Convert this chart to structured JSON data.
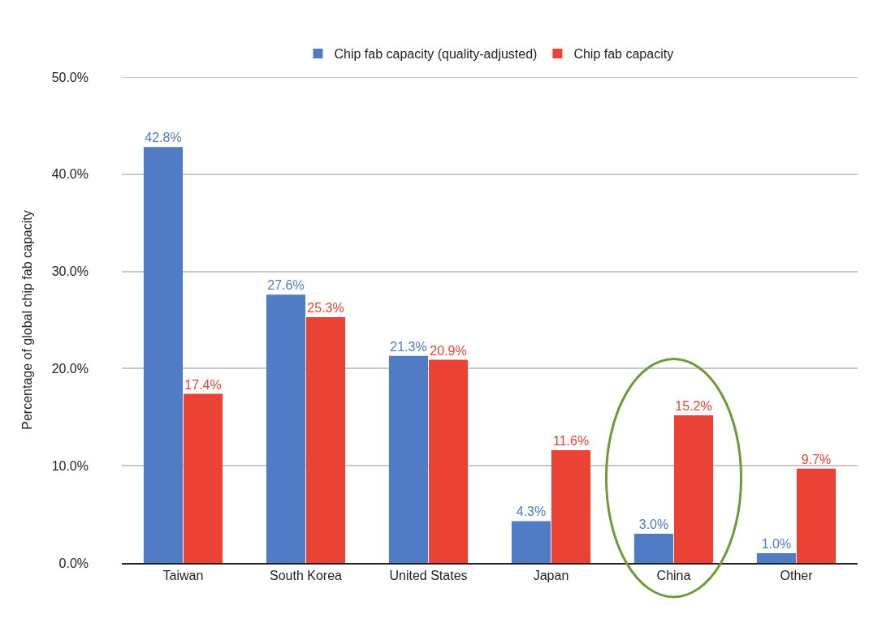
{
  "chart_data": {
    "type": "bar",
    "ylabel": "Percentage of global chip fab capacity",
    "categories": [
      "Taiwan",
      "South Korea",
      "United States",
      "Japan",
      "China",
      "Other"
    ],
    "series": [
      {
        "name": "Chip fab capacity (quality-adjusted)",
        "color": "#4f7cc4",
        "values": [
          42.8,
          27.6,
          21.3,
          4.3,
          3.0,
          1.0
        ],
        "value_labels": [
          "42.8%",
          "27.6%",
          "21.3%",
          "4.3%",
          "3.0%",
          "1.0%"
        ]
      },
      {
        "name": "Chip fab capacity",
        "color": "#ea4335",
        "values": [
          17.4,
          25.3,
          20.9,
          11.6,
          15.2,
          9.7
        ],
        "value_labels": [
          "17.4%",
          "25.3%",
          "20.9%",
          "11.6%",
          "15.2%",
          "9.7%"
        ]
      }
    ],
    "ylim": [
      0,
      50
    ],
    "yticks": [
      {
        "value": 0,
        "label": "0.0%"
      },
      {
        "value": 10,
        "label": "10.0%"
      },
      {
        "value": 20,
        "label": "20.0%"
      },
      {
        "value": 30,
        "label": "30.0%"
      },
      {
        "value": 40,
        "label": "40.0%"
      },
      {
        "value": 50,
        "label": "50.0%"
      }
    ],
    "grid": "y",
    "legend": "top"
  }
}
